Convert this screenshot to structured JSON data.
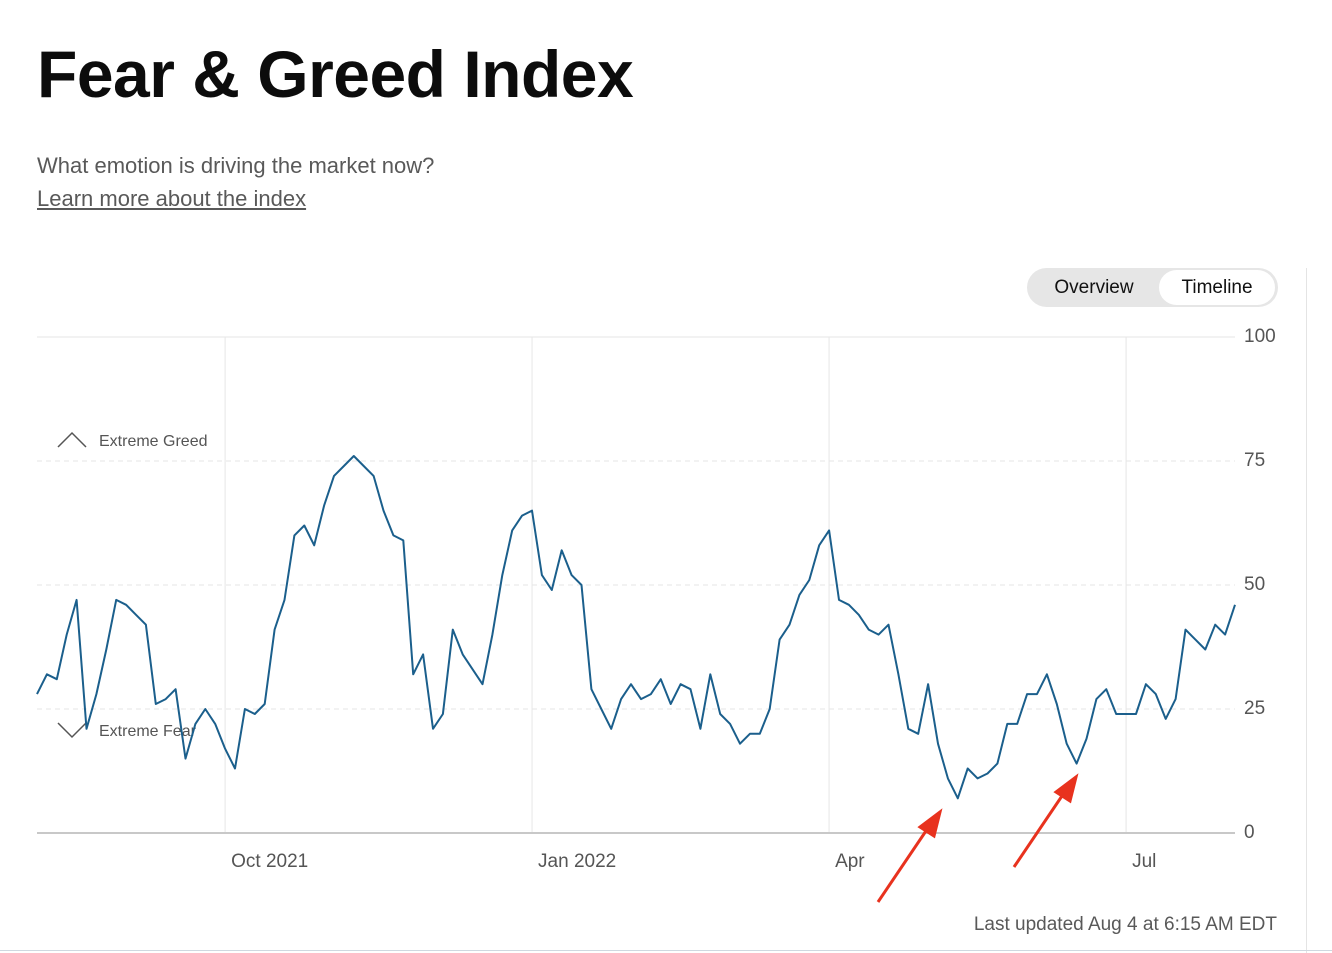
{
  "header": {
    "title": "Fear & Greed Index",
    "subtitle": "What emotion is driving the market now?",
    "link": "Learn more about the index"
  },
  "toggle": {
    "options": [
      "Overview",
      "Timeline"
    ]
  },
  "footer": {
    "updated": "Last updated Aug 4 at 6:15 AM EDT"
  },
  "chart_data": {
    "type": "line",
    "categories": [
      null,
      null,
      null,
      null,
      null,
      null,
      null,
      null,
      null,
      null,
      null,
      null,
      null,
      null,
      null,
      null,
      null,
      null,
      null,
      "Oct 2021",
      null,
      null,
      null,
      null,
      null,
      null,
      null,
      null,
      null,
      null,
      null,
      null,
      null,
      null,
      null,
      null,
      null,
      null,
      null,
      null,
      null,
      null,
      null,
      null,
      null,
      null,
      null,
      null,
      null,
      null,
      "Jan 2022",
      null,
      null,
      null,
      null,
      null,
      null,
      null,
      null,
      null,
      null,
      null,
      null,
      null,
      null,
      null,
      null,
      null,
      null,
      null,
      null,
      null,
      null,
      null,
      null,
      null,
      null,
      null,
      null,
      null,
      "Apr",
      null,
      null,
      null,
      null,
      null,
      null,
      null,
      null,
      null,
      null,
      null,
      null,
      null,
      null,
      null,
      null,
      null,
      null,
      null,
      null,
      null,
      null,
      null,
      null,
      null,
      null,
      null,
      null,
      null,
      "Jul",
      null,
      null,
      null,
      null,
      null,
      null,
      null,
      null,
      null,
      null,
      null
    ],
    "series": [
      {
        "color": "#1b5f8c",
        "values": [
          28,
          32,
          31,
          40,
          47,
          21,
          28,
          37,
          47,
          46,
          44,
          42,
          26,
          27,
          29,
          15,
          22,
          25,
          22,
          17,
          13,
          25,
          24,
          26,
          41,
          47,
          60,
          62,
          58,
          66,
          72,
          74,
          76,
          74,
          72,
          65,
          60,
          59,
          32,
          36,
          21,
          24,
          41,
          36,
          33,
          30,
          40,
          52,
          61,
          64,
          65,
          52,
          49,
          57,
          52,
          50,
          29,
          25,
          21,
          27,
          30,
          27,
          28,
          31,
          26,
          30,
          29,
          21,
          32,
          24,
          22,
          18,
          20,
          20,
          25,
          39,
          42,
          48,
          51,
          58,
          61,
          47,
          46,
          44,
          41,
          40,
          42,
          32,
          21,
          20,
          30,
          18,
          11,
          7,
          13,
          11,
          12,
          14,
          22,
          22,
          28,
          28,
          32,
          26,
          18,
          14,
          19,
          27,
          29,
          24,
          24,
          24,
          30,
          28,
          23,
          27,
          41,
          39,
          37,
          42,
          40,
          46
        ]
      }
    ],
    "ylim": [
      0,
      100
    ],
    "yticks": [
      0,
      25,
      50,
      75,
      100
    ],
    "grid": true,
    "annotations": [
      "Extreme Greed",
      "Extreme Fear"
    ]
  }
}
